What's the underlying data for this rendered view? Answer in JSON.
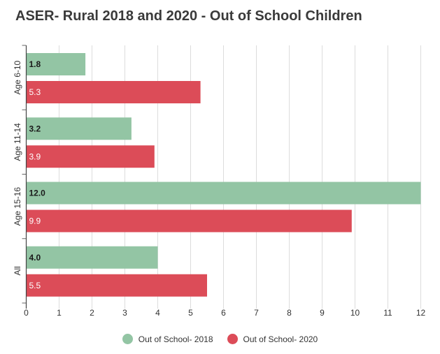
{
  "chart_data": {
    "type": "bar",
    "orientation": "horizontal",
    "title": "ASER- Rural 2018 and 2020 - Out of School Children",
    "categories": [
      "Age 6-10",
      "Age 11-14",
      "Age 15-16",
      "All"
    ],
    "series": [
      {
        "name": "Out of School- 2018",
        "values": [
          1.8,
          3.2,
          12.0,
          4.0
        ],
        "labels": [
          "1.8",
          "3.2",
          "12.0",
          "4.0"
        ],
        "color": "#93c5a4",
        "label_color": "#1a1a1a"
      },
      {
        "name": "Out of School- 2020",
        "values": [
          5.3,
          3.9,
          9.9,
          5.5
        ],
        "labels": [
          "5.3",
          "3.9",
          "9.9",
          "5.5"
        ],
        "color": "#dc4c58",
        "label_color": "#ffffff"
      }
    ],
    "xlim": [
      0,
      12
    ],
    "xticks": [
      "0",
      "1",
      "2",
      "3",
      "4",
      "5",
      "6",
      "7",
      "8",
      "9",
      "10",
      "11",
      "12"
    ],
    "grid": "vertical",
    "legend_position": "bottom"
  }
}
